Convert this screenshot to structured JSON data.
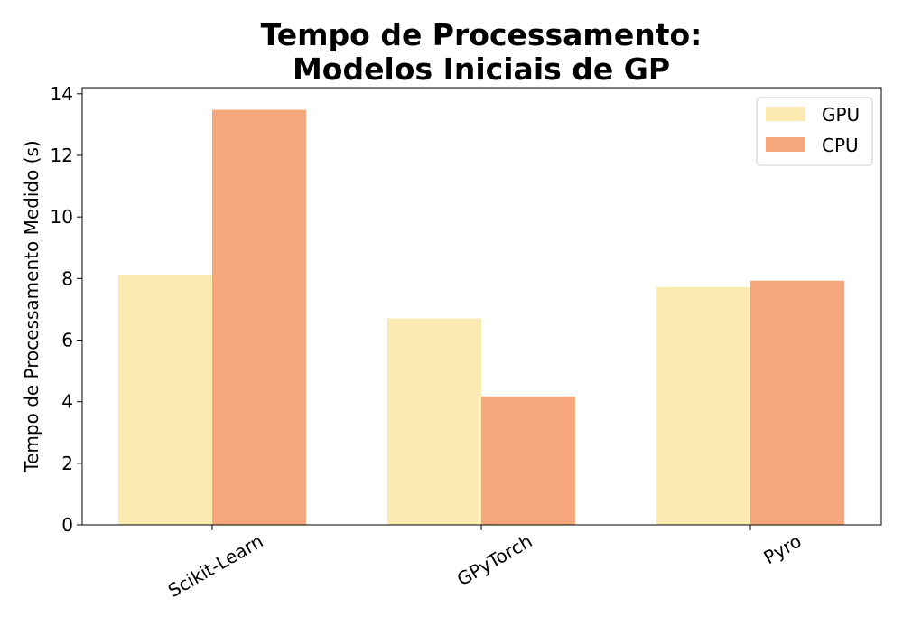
{
  "chart_data": {
    "type": "bar",
    "title": [
      "Tempo de Processamento:",
      "Modelos Iniciais de GP"
    ],
    "xlabel": "",
    "ylabel": "Tempo de Processamento Medido (s)",
    "categories": [
      "Scikit-Learn",
      "GPyTorch",
      "Pyro"
    ],
    "series": [
      {
        "name": "GPU",
        "values": [
          8.12,
          6.7,
          7.72
        ],
        "color": "#fdeab1"
      },
      {
        "name": "CPU",
        "values": [
          13.48,
          4.17,
          7.93
        ],
        "color": "#f6a77b"
      }
    ],
    "ylim": [
      0,
      14.2
    ],
    "yticks": [
      0,
      2,
      4,
      6,
      8,
      10,
      12,
      14
    ],
    "grid": false,
    "legend_position": "top-right"
  }
}
